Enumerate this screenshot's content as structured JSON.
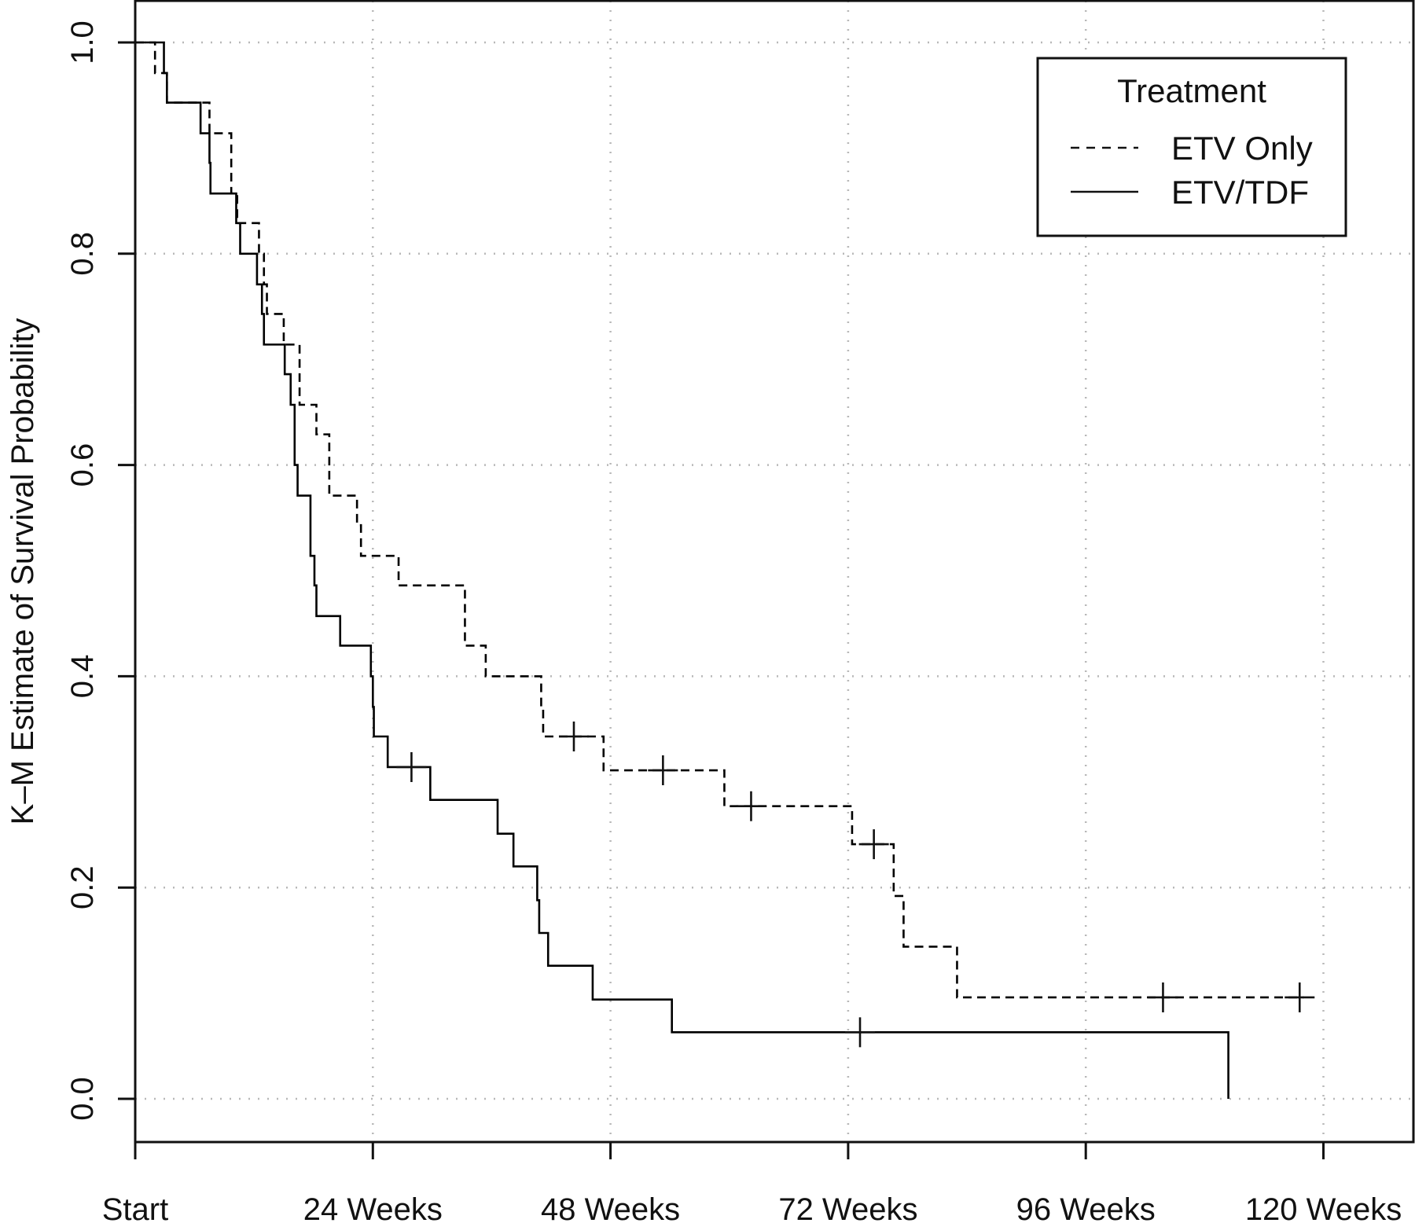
{
  "chart_data": {
    "type": "line",
    "subtype": "kaplan-meier-step",
    "title": "",
    "xlabel": "",
    "ylabel": "K–M Estimate of Survival Probability",
    "xlim": [
      0,
      127
    ],
    "ylim": [
      -0.04,
      1.04
    ],
    "x_ticks": [
      {
        "value": 0,
        "label": "Start"
      },
      {
        "value": 24,
        "label": "24 Weeks"
      },
      {
        "value": 48,
        "label": "48 Weeks"
      },
      {
        "value": 72,
        "label": "72 Weeks"
      },
      {
        "value": 96,
        "label": "96 Weeks"
      },
      {
        "value": 120,
        "label": "120 Weeks"
      }
    ],
    "y_ticks": [
      {
        "value": 0.0,
        "label": "0.0"
      },
      {
        "value": 0.2,
        "label": "0.2"
      },
      {
        "value": 0.4,
        "label": "0.4"
      },
      {
        "value": 0.6,
        "label": "0.6"
      },
      {
        "value": 0.8,
        "label": "0.8"
      },
      {
        "value": 1.0,
        "label": "1.0"
      }
    ],
    "grid": true,
    "legend": {
      "title": "Treatment",
      "position": "top-right"
    },
    "series": [
      {
        "name": "ETV Only",
        "line_style": "dashed",
        "color": "#000000",
        "steps": [
          [
            0,
            1.0
          ],
          [
            2,
            0.971
          ],
          [
            3.2,
            0.943
          ],
          [
            7.5,
            0.914
          ],
          [
            9.7,
            0.857
          ],
          [
            10.3,
            0.829
          ],
          [
            12.5,
            0.8
          ],
          [
            13,
            0.771
          ],
          [
            13.3,
            0.743
          ],
          [
            15,
            0.714
          ],
          [
            16.6,
            0.657
          ],
          [
            18.3,
            0.629
          ],
          [
            19.6,
            0.571
          ],
          [
            22.4,
            0.543
          ],
          [
            22.8,
            0.514
          ],
          [
            26.6,
            0.486
          ],
          [
            33.3,
            0.429
          ],
          [
            35.4,
            0.4
          ],
          [
            41,
            0.371
          ],
          [
            41.2,
            0.343
          ],
          [
            47.3,
            0.311
          ],
          [
            59.5,
            0.277
          ],
          [
            72.4,
            0.241
          ],
          [
            76.6,
            0.192
          ],
          [
            77.6,
            0.144
          ],
          [
            83,
            0.096
          ]
        ],
        "end_x": 118,
        "censored": [
          {
            "x": 44.3,
            "y": 0.343
          },
          {
            "x": 53.3,
            "y": 0.311
          },
          {
            "x": 62.2,
            "y": 0.277
          },
          {
            "x": 74.6,
            "y": 0.241
          },
          {
            "x": 103.8,
            "y": 0.096
          },
          {
            "x": 117.6,
            "y": 0.096
          }
        ]
      },
      {
        "name": "ETV/TDF",
        "line_style": "solid",
        "color": "#000000",
        "steps": [
          [
            0,
            1.0
          ],
          [
            2.9,
            0.971
          ],
          [
            3.2,
            0.943
          ],
          [
            6.6,
            0.914
          ],
          [
            7.5,
            0.886
          ],
          [
            7.6,
            0.857
          ],
          [
            10.2,
            0.829
          ],
          [
            10.6,
            0.8
          ],
          [
            12.3,
            0.771
          ],
          [
            12.8,
            0.743
          ],
          [
            13,
            0.714
          ],
          [
            15.1,
            0.686
          ],
          [
            15.7,
            0.657
          ],
          [
            16.1,
            0.6
          ],
          [
            16.4,
            0.571
          ],
          [
            17.7,
            0.514
          ],
          [
            18.1,
            0.486
          ],
          [
            18.3,
            0.457
          ],
          [
            20.7,
            0.429
          ],
          [
            23.8,
            0.4
          ],
          [
            24.0,
            0.371
          ],
          [
            24.1,
            0.343
          ],
          [
            25.5,
            0.314
          ],
          [
            29.8,
            0.283
          ],
          [
            36.6,
            0.251
          ],
          [
            38.2,
            0.22
          ],
          [
            40.6,
            0.188
          ],
          [
            40.8,
            0.157
          ],
          [
            41.7,
            0.126
          ],
          [
            46.2,
            0.094
          ],
          [
            54.2,
            0.063
          ],
          [
            110.4,
            0.0
          ]
        ],
        "end_x": 110.4,
        "censored": [
          {
            "x": 27.9,
            "y": 0.314
          },
          {
            "x": 73.2,
            "y": 0.063
          }
        ]
      }
    ]
  }
}
